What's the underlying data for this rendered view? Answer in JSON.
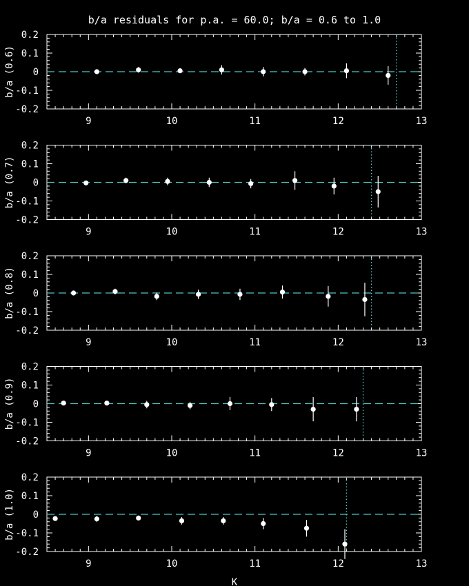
{
  "title": "b/a residuals for p.a. = 60.0; b/a = 0.6 to 1.0",
  "colors": {
    "background": "#000000",
    "foreground": "#ffffff",
    "reference": "#4fc7c7"
  },
  "chart_data": [
    {
      "type": "scatter",
      "xlabel": "K",
      "ylabel": "b/a (0.6)",
      "xlim": [
        8.5,
        13
      ],
      "ylim": [
        -0.2,
        0.2
      ],
      "xticks": [
        "9",
        "10",
        "11",
        "12",
        "13"
      ],
      "yticks": [
        "0.2",
        "0.1",
        "0",
        "-0.1",
        "-0.2"
      ],
      "reference_y": 0,
      "vline_x": 12.7,
      "points": [
        {
          "x": 9.1,
          "y": 0.0,
          "err": 0.01
        },
        {
          "x": 9.6,
          "y": 0.01,
          "err": 0.015
        },
        {
          "x": 10.1,
          "y": 0.005,
          "err": 0.01
        },
        {
          "x": 10.6,
          "y": 0.01,
          "err": 0.025
        },
        {
          "x": 11.1,
          "y": 0.0,
          "err": 0.025
        },
        {
          "x": 11.6,
          "y": 0.0,
          "err": 0.02
        },
        {
          "x": 12.1,
          "y": 0.005,
          "err": 0.04
        },
        {
          "x": 12.6,
          "y": -0.02,
          "err": 0.05
        }
      ]
    },
    {
      "type": "scatter",
      "xlabel": "K",
      "ylabel": "b/a (0.7)",
      "xlim": [
        8.5,
        13
      ],
      "ylim": [
        -0.2,
        0.2
      ],
      "xticks": [
        "9",
        "10",
        "11",
        "12",
        "13"
      ],
      "yticks": [
        "0.2",
        "0.1",
        "0",
        "-0.1",
        "-0.2"
      ],
      "reference_y": 0,
      "vline_x": 12.4,
      "points": [
        {
          "x": 8.97,
          "y": -0.003,
          "err": 0.01
        },
        {
          "x": 9.45,
          "y": 0.01,
          "err": 0.015
        },
        {
          "x": 9.95,
          "y": 0.005,
          "err": 0.02
        },
        {
          "x": 10.45,
          "y": 0.0,
          "err": 0.025
        },
        {
          "x": 10.95,
          "y": -0.007,
          "err": 0.025
        },
        {
          "x": 11.48,
          "y": 0.01,
          "err": 0.05
        },
        {
          "x": 11.95,
          "y": -0.02,
          "err": 0.045
        },
        {
          "x": 12.48,
          "y": -0.05,
          "err": 0.085
        }
      ]
    },
    {
      "type": "scatter",
      "xlabel": "K",
      "ylabel": "b/a (0.8)",
      "xlim": [
        8.5,
        13
      ],
      "ylim": [
        -0.2,
        0.2
      ],
      "xticks": [
        "9",
        "10",
        "11",
        "12",
        "13"
      ],
      "yticks": [
        "0.2",
        "0.1",
        "0",
        "-0.1",
        "-0.2"
      ],
      "reference_y": 0,
      "vline_x": 12.4,
      "points": [
        {
          "x": 8.82,
          "y": 0.0,
          "err": 0.01
        },
        {
          "x": 9.32,
          "y": 0.008,
          "err": 0.015
        },
        {
          "x": 9.82,
          "y": -0.018,
          "err": 0.02
        },
        {
          "x": 10.32,
          "y": -0.007,
          "err": 0.025
        },
        {
          "x": 10.82,
          "y": -0.007,
          "err": 0.03
        },
        {
          "x": 11.33,
          "y": 0.005,
          "err": 0.035
        },
        {
          "x": 11.88,
          "y": -0.018,
          "err": 0.055
        },
        {
          "x": 12.32,
          "y": -0.035,
          "err": 0.09
        }
      ]
    },
    {
      "type": "scatter",
      "xlabel": "K",
      "ylabel": "b/a (0.9)",
      "xlim": [
        8.5,
        13
      ],
      "ylim": [
        -0.2,
        0.2
      ],
      "xticks": [
        "9",
        "10",
        "11",
        "12",
        "13"
      ],
      "yticks": [
        "0.2",
        "0.1",
        "0",
        "-0.1",
        "-0.2"
      ],
      "reference_y": 0,
      "vline_x": 12.3,
      "points": [
        {
          "x": 8.7,
          "y": 0.003,
          "err": 0.01
        },
        {
          "x": 9.22,
          "y": 0.003,
          "err": 0.01
        },
        {
          "x": 9.7,
          "y": -0.005,
          "err": 0.02
        },
        {
          "x": 10.22,
          "y": -0.01,
          "err": 0.02
        },
        {
          "x": 10.7,
          "y": 0.0,
          "err": 0.035
        },
        {
          "x": 11.2,
          "y": -0.005,
          "err": 0.035
        },
        {
          "x": 11.7,
          "y": -0.03,
          "err": 0.065
        },
        {
          "x": 12.22,
          "y": -0.03,
          "err": 0.065
        }
      ]
    },
    {
      "type": "scatter",
      "xlabel": "K",
      "ylabel": "b/a (1.0)",
      "xlim": [
        8.5,
        13
      ],
      "ylim": [
        -0.2,
        0.2
      ],
      "xticks": [
        "9",
        "10",
        "11",
        "12",
        "13"
      ],
      "yticks": [
        "0.2",
        "0.1",
        "0",
        "-0.1",
        "-0.2"
      ],
      "reference_y": 0,
      "vline_x": 12.1,
      "points": [
        {
          "x": 8.6,
          "y": -0.023,
          "err": 0.005
        },
        {
          "x": 9.1,
          "y": -0.025,
          "err": 0.015
        },
        {
          "x": 9.6,
          "y": -0.02,
          "err": 0.01
        },
        {
          "x": 10.12,
          "y": -0.035,
          "err": 0.02
        },
        {
          "x": 10.62,
          "y": -0.035,
          "err": 0.02
        },
        {
          "x": 11.1,
          "y": -0.05,
          "err": 0.03
        },
        {
          "x": 11.62,
          "y": -0.075,
          "err": 0.045
        },
        {
          "x": 12.08,
          "y": -0.16,
          "err": 0.08
        }
      ]
    }
  ]
}
